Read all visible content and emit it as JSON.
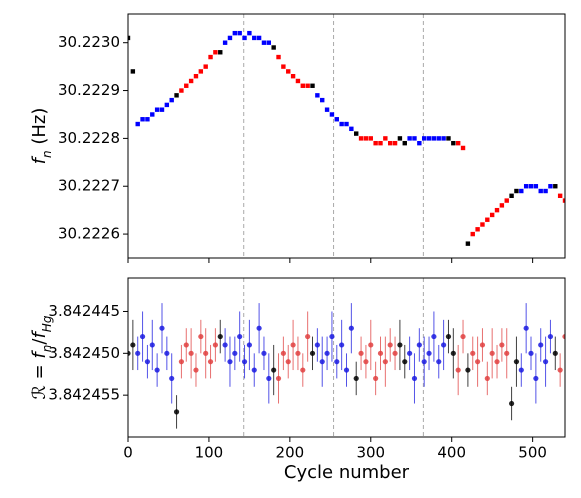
{
  "chart_data": [
    {
      "type": "scatter",
      "marker": "square",
      "y_label_parts": [
        {
          "text": "f",
          "italic": true
        },
        {
          "text": "n",
          "sub": true,
          "italic": true
        },
        {
          "text": " (Hz)"
        }
      ],
      "xlim": [
        0,
        540
      ],
      "xticks": [
        0,
        100,
        200,
        300,
        400,
        500
      ],
      "x_tick_labels": false,
      "ylim": [
        30.22255,
        30.22306
      ],
      "yticks": [
        30.2226,
        30.2227,
        30.2228,
        30.2229,
        {
          "value": 30.223,
          "label": "30.2230"
        }
      ],
      "vlines": [
        143,
        254,
        365
      ],
      "series": [
        {
          "color": "#000000",
          "x": [
            0,
            6,
            60,
            114,
            180,
            228,
            282,
            336,
            342,
            396,
            402,
            420,
            474,
            480,
            528
          ],
          "values": [
            30.22301,
            30.22294,
            30.22289,
            30.22298,
            30.22299,
            30.22291,
            30.22281,
            30.2228,
            30.22279,
            30.2228,
            30.22279,
            30.22258,
            30.22268,
            30.22269,
            30.2227
          ]
        },
        {
          "color": "#0000ff",
          "x": [
            12,
            18,
            24,
            30,
            36,
            42,
            48,
            54,
            120,
            126,
            132,
            138,
            144,
            150,
            156,
            162,
            168,
            174,
            234,
            240,
            246,
            252,
            258,
            264,
            270,
            276,
            348,
            354,
            360,
            366,
            372,
            378,
            384,
            390,
            486,
            492,
            498,
            504,
            510,
            516,
            522
          ],
          "values": [
            30.22283,
            30.22284,
            30.22284,
            30.22285,
            30.22286,
            30.22286,
            30.22287,
            30.22288,
            30.223,
            30.22301,
            30.22302,
            30.22302,
            30.22301,
            30.22302,
            30.22301,
            30.22301,
            30.223,
            30.223,
            30.22289,
            30.22288,
            30.22286,
            30.22285,
            30.22284,
            30.22283,
            30.22283,
            30.22282,
            30.2228,
            30.2228,
            30.22279,
            30.2228,
            30.2228,
            30.2228,
            30.2228,
            30.2228,
            30.22269,
            30.2227,
            30.2227,
            30.2227,
            30.22269,
            30.22269,
            30.2227
          ]
        },
        {
          "color": "#ff0000",
          "x": [
            66,
            72,
            78,
            84,
            90,
            96,
            102,
            108,
            186,
            192,
            198,
            204,
            210,
            216,
            222,
            288,
            294,
            300,
            306,
            312,
            318,
            324,
            330,
            408,
            414,
            426,
            432,
            438,
            444,
            450,
            456,
            462,
            468,
            534,
            540
          ],
          "values": [
            30.2229,
            30.22291,
            30.22292,
            30.22293,
            30.22294,
            30.22295,
            30.22297,
            30.22298,
            30.22297,
            30.22295,
            30.22294,
            30.22293,
            30.22292,
            30.22291,
            30.22291,
            30.2228,
            30.2228,
            30.2228,
            30.22279,
            30.22279,
            30.2228,
            30.22279,
            30.22279,
            30.22279,
            30.22278,
            30.2226,
            30.22261,
            30.22262,
            30.22263,
            30.22264,
            30.22265,
            30.22266,
            30.22267,
            30.22268,
            30.22267
          ]
        }
      ]
    },
    {
      "type": "errorbar",
      "marker": "circle",
      "y_label_parts": [
        {
          "text": "ℛ = ",
          "italic": true
        },
        {
          "text": "f",
          "italic": true
        },
        {
          "text": "n",
          "sub": true,
          "italic": true
        },
        {
          "text": "/"
        },
        {
          "text": "f",
          "italic": true
        },
        {
          "text": "Hg",
          "sub": true,
          "italic": true
        }
      ],
      "x_label": "Cycle number",
      "xlim": [
        0,
        540
      ],
      "xticks": [
        0,
        100,
        200,
        300,
        400,
        500
      ],
      "x_tick_labels": true,
      "ylim": [
        3.842441,
        3.84246
      ],
      "y_inverted": true,
      "yticks": [
        3.842445,
        {
          "value": 3.84245,
          "label": "3.842450"
        },
        3.842455
      ],
      "vlines": [
        143,
        254,
        365
      ],
      "series": [
        {
          "color": "#000000",
          "x": [
            0,
            6,
            60,
            114,
            180,
            228,
            282,
            336,
            342,
            396,
            402,
            420,
            474,
            480,
            528
          ],
          "values": [
            3.84245,
            3.842449,
            3.842457,
            3.842448,
            3.842452,
            3.84245,
            3.842453,
            3.842449,
            3.842451,
            3.842448,
            3.84245,
            3.842452,
            3.842456,
            3.842451,
            3.84245
          ],
          "errors": [
            2e-06,
            3e-06,
            2e-06,
            2e-06,
            3e-06,
            2e-06,
            2e-06,
            3e-06,
            2e-06,
            2e-06,
            3e-06,
            2e-06,
            2e-06,
            3e-06,
            2e-06
          ]
        },
        {
          "color": "#1a1ae0",
          "x": [
            12,
            18,
            24,
            30,
            36,
            42,
            48,
            54,
            120,
            126,
            132,
            138,
            144,
            150,
            156,
            162,
            168,
            174,
            234,
            240,
            246,
            252,
            258,
            264,
            270,
            276,
            348,
            354,
            360,
            366,
            372,
            378,
            384,
            390,
            486,
            492,
            498,
            504,
            510,
            516,
            522
          ],
          "values": [
            3.84245,
            3.842448,
            3.842451,
            3.842449,
            3.842452,
            3.842447,
            3.84245,
            3.842453,
            3.842449,
            3.842451,
            3.84245,
            3.842448,
            3.842451,
            3.842449,
            3.842452,
            3.842447,
            3.84245,
            3.842453,
            3.842449,
            3.842451,
            3.84245,
            3.842448,
            3.842451,
            3.842449,
            3.842452,
            3.842447,
            3.84245,
            3.842453,
            3.842449,
            3.842451,
            3.84245,
            3.842448,
            3.842451,
            3.842449,
            3.842452,
            3.842447,
            3.84245,
            3.842453,
            3.842449,
            3.842451,
            3.842448
          ],
          "errors": [
            2e-06,
            3e-06,
            2e-06,
            3e-06,
            2e-06,
            3e-06,
            2e-06,
            3e-06,
            2e-06,
            3e-06,
            2e-06,
            3e-06,
            2e-06,
            3e-06,
            2e-06,
            3e-06,
            2e-06,
            3e-06,
            2e-06,
            3e-06,
            2e-06,
            3e-06,
            2e-06,
            3e-06,
            2e-06,
            3e-06,
            2e-06,
            3e-06,
            2e-06,
            3e-06,
            2e-06,
            3e-06,
            2e-06,
            3e-06,
            2e-06,
            3e-06,
            2e-06,
            3e-06,
            2e-06,
            3e-06,
            2e-06
          ]
        },
        {
          "color": "#e04040",
          "x": [
            66,
            72,
            78,
            84,
            90,
            96,
            102,
            108,
            186,
            192,
            198,
            204,
            210,
            216,
            222,
            288,
            294,
            300,
            306,
            312,
            318,
            324,
            330,
            408,
            414,
            426,
            432,
            438,
            444,
            450,
            456,
            462,
            468,
            534,
            540
          ],
          "values": [
            3.842451,
            3.842449,
            3.84245,
            3.842452,
            3.842448,
            3.84245,
            3.842451,
            3.842449,
            3.842453,
            3.84245,
            3.842451,
            3.842449,
            3.84245,
            3.842452,
            3.842448,
            3.84245,
            3.842451,
            3.842449,
            3.842453,
            3.84245,
            3.842451,
            3.842449,
            3.84245,
            3.842452,
            3.842448,
            3.84245,
            3.842451,
            3.842449,
            3.842453,
            3.84245,
            3.842451,
            3.842449,
            3.84245,
            3.842452,
            3.842448
          ],
          "errors": [
            2e-06,
            2e-06,
            3e-06,
            2e-06,
            2e-06,
            3e-06,
            2e-06,
            2e-06,
            3e-06,
            2e-06,
            2e-06,
            3e-06,
            2e-06,
            2e-06,
            3e-06,
            2e-06,
            2e-06,
            3e-06,
            2e-06,
            2e-06,
            3e-06,
            2e-06,
            2e-06,
            3e-06,
            2e-06,
            2e-06,
            3e-06,
            2e-06,
            2e-06,
            3e-06,
            2e-06,
            2e-06,
            3e-06,
            2e-06,
            2e-06
          ]
        }
      ]
    }
  ]
}
